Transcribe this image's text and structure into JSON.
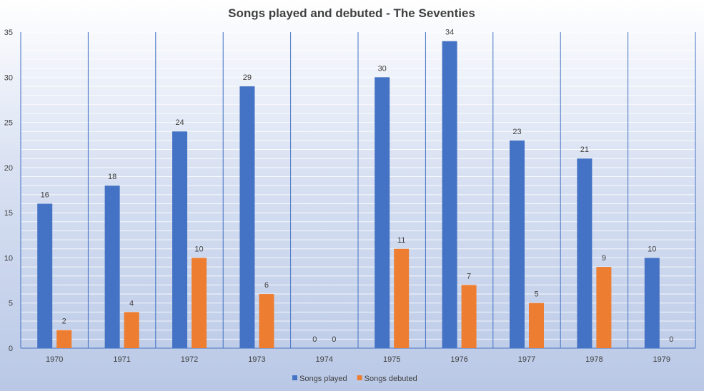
{
  "chart_data": {
    "type": "bar",
    "title": "Songs played and debuted - The Seventies",
    "xlabel": "",
    "ylabel": "",
    "categories": [
      "1970",
      "1971",
      "1972",
      "1973",
      "1974",
      "1975",
      "1976",
      "1977",
      "1978",
      "1979"
    ],
    "series": [
      {
        "name": "Songs played",
        "color": "#4472c4",
        "values": [
          16,
          18,
          24,
          29,
          0,
          30,
          34,
          23,
          21,
          10
        ]
      },
      {
        "name": "Songs debuted",
        "color": "#ed7d31",
        "values": [
          2,
          4,
          10,
          6,
          0,
          11,
          7,
          5,
          9,
          0
        ]
      }
    ],
    "ylim": [
      0,
      35
    ],
    "yticks": [
      0,
      5,
      10,
      15,
      20,
      25,
      30,
      35
    ],
    "grid": true,
    "legend": "bottom",
    "data_labels": true
  }
}
